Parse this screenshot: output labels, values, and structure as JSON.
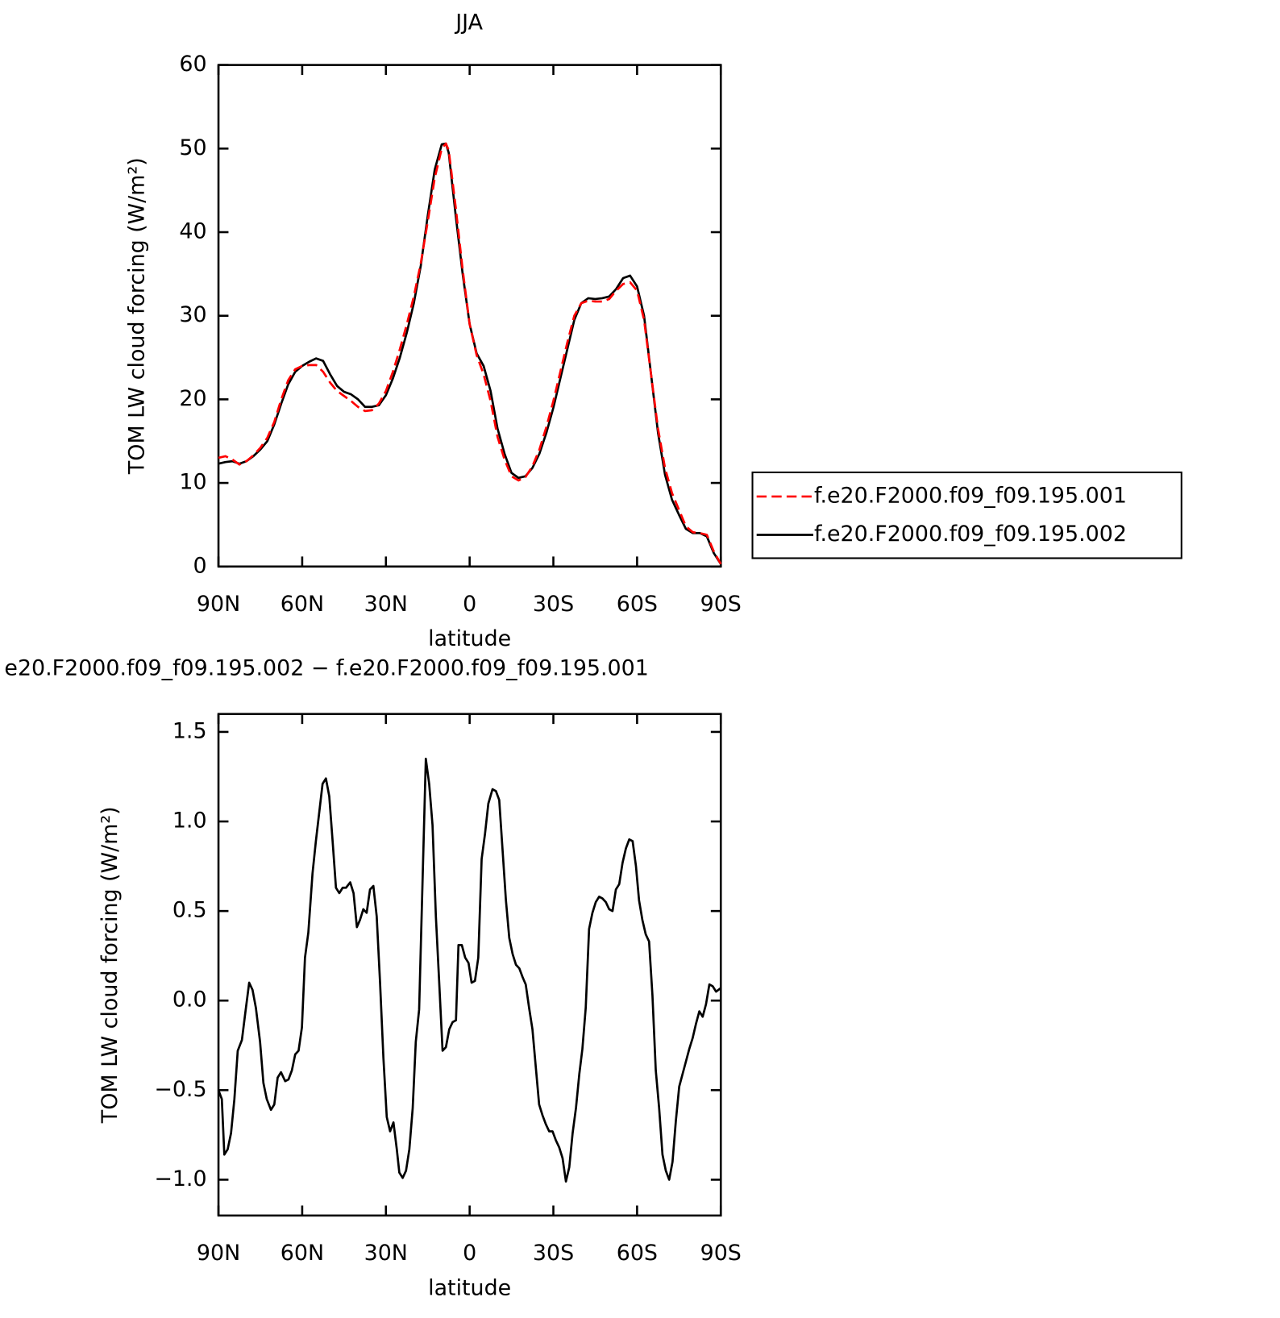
{
  "chart_data": [
    {
      "type": "line",
      "title": "JJA",
      "xlabel": "latitude",
      "ylabel": "TOM LW cloud forcing (W/m²)",
      "x": [
        90,
        87.5,
        85,
        82.5,
        80,
        77.5,
        75,
        72.5,
        70,
        67.5,
        65,
        62.5,
        60,
        57.5,
        55,
        52.5,
        50,
        47.5,
        45,
        42.5,
        40,
        37.5,
        35,
        32.5,
        30,
        27.5,
        25,
        22.5,
        20,
        17.5,
        15,
        12.5,
        10,
        8.5,
        7.5,
        5,
        2.5,
        0,
        -2.5,
        -5,
        -7.5,
        -10,
        -12.5,
        -15,
        -17.5,
        -20,
        -22.5,
        -25,
        -27.5,
        -30,
        -32.5,
        -35,
        -37.5,
        -40,
        -42.5,
        -45,
        -47.5,
        -50,
        -52.5,
        -55,
        -57.5,
        -60,
        -62.5,
        -65,
        -67.5,
        -70,
        -72.5,
        -75,
        -77.5,
        -80,
        -82.5,
        -85,
        -87.5,
        -90
      ],
      "series": [
        {
          "name": "f.e20.F2000.f09_f09.195.001",
          "color": "#ff0000",
          "line_style": "dashed",
          "values": [
            13,
            13.2,
            12.8,
            12.2,
            12.6,
            13.3,
            14.2,
            15.4,
            17.3,
            20,
            22.3,
            23.6,
            24,
            24.1,
            24.1,
            23.3,
            22,
            21,
            20.4,
            19.8,
            19.1,
            18.6,
            18.7,
            19.5,
            21,
            23.3,
            26,
            29,
            32.3,
            36.3,
            41.3,
            46.5,
            50,
            50.6,
            49.8,
            43,
            35.5,
            29,
            25.3,
            23,
            19.8,
            15.5,
            12.8,
            10.8,
            10.3,
            10.7,
            12,
            14,
            16.7,
            19.8,
            23.3,
            26.8,
            30,
            31.5,
            31.8,
            31.7,
            31.7,
            32,
            33,
            33.8,
            34,
            33,
            29.5,
            23,
            16.5,
            11.8,
            8.8,
            6.8,
            4.8,
            4.1,
            4,
            3.8,
            1.8,
            0.3
          ]
        },
        {
          "name": "f.e20.F2000.f09_f09.195.002",
          "color": "#000000",
          "line_style": "solid",
          "values": [
            12.3,
            12.5,
            12.6,
            12.3,
            12.6,
            13.2,
            14,
            15,
            17,
            19.5,
            21.8,
            23.3,
            24,
            24.5,
            24.9,
            24.6,
            23,
            21.6,
            20.9,
            20.6,
            20,
            19.1,
            19.1,
            19.3,
            20.5,
            22.5,
            25,
            28,
            31.5,
            36,
            42,
            47.5,
            50.5,
            50.6,
            49.5,
            42,
            35,
            29,
            25.5,
            24,
            21,
            16.5,
            13.5,
            11.2,
            10.6,
            10.8,
            11.8,
            13.5,
            16,
            19,
            22.5,
            26,
            29.5,
            31.5,
            32.1,
            32,
            32.1,
            32.3,
            33.2,
            34.5,
            34.8,
            33.5,
            30,
            23,
            16,
            11,
            8,
            6.2,
            4.5,
            4,
            4,
            3.6,
            1.6,
            0.3
          ]
        }
      ],
      "xlim": [
        90,
        -90
      ],
      "xticks": [
        {
          "value": 90,
          "label": "90N"
        },
        {
          "value": 60,
          "label": "60N"
        },
        {
          "value": 30,
          "label": "30N"
        },
        0,
        {
          "value": -30,
          "label": "30S"
        },
        {
          "value": -60,
          "label": "60S"
        },
        {
          "value": -90,
          "label": "90S"
        }
      ],
      "ylim": [
        0,
        60
      ],
      "yticks": [
        0,
        10,
        20,
        30,
        40,
        50,
        60
      ],
      "legend": "right"
    },
    {
      "type": "line",
      "title": "e20.F2000.f09_f09.195.002 − f.e20.F2000.f09_f09.195.001",
      "xlabel": "latitude",
      "ylabel": "TOM LW cloud forcing (W/m²)",
      "x": [
        90,
        88.8,
        87.9,
        86.7,
        85.5,
        84.3,
        83.1,
        81.6,
        80.4,
        79,
        77.8,
        76.6,
        75.1,
        73.9,
        72.7,
        71.2,
        70,
        68.8,
        67.6,
        66.1,
        64.9,
        63.7,
        62.5,
        61.3,
        60.1,
        59,
        57.8,
        56.3,
        55.1,
        53.9,
        52.7,
        51.5,
        50.3,
        49.1,
        47.9,
        46.7,
        45.5,
        44.3,
        42.8,
        41.6,
        40.4,
        39.3,
        38.1,
        36.9,
        35.7,
        34.5,
        33.3,
        32.1,
        30.9,
        29.7,
        28.5,
        27.3,
        26.1,
        25.2,
        24,
        22.8,
        21.6,
        20.4,
        19.3,
        18.1,
        16.9,
        15.7,
        14.5,
        13.3,
        12.1,
        10.9,
        9.7,
        8.5,
        7.3,
        6.1,
        4.9,
        4,
        2.8,
        1.6,
        0.4,
        -0.7,
        -1.9,
        -3.1,
        -4.3,
        -5.5,
        -6.7,
        -8.2,
        -9.4,
        -10.6,
        -11.8,
        -13,
        -14.2,
        -15.4,
        -16.6,
        -17.8,
        -19,
        -20.1,
        -21.3,
        -22.5,
        -23.7,
        -24.9,
        -26.1,
        -27.3,
        -28.5,
        -29.7,
        -30.9,
        -32.1,
        -33.3,
        -34.5,
        -35.7,
        -36.9,
        -38.1,
        -39.3,
        -40.4,
        -41.6,
        -42.8,
        -44,
        -45.2,
        -46.4,
        -47.6,
        -48.8,
        -50,
        -51.2,
        -52.4,
        -53.6,
        -54.8,
        -56,
        -57.2,
        -58.4,
        -59.6,
        -60.7,
        -61.9,
        -63.1,
        -64.3,
        -65.5,
        -66.7,
        -67.9,
        -69.1,
        -70.3,
        -71.5,
        -72.7,
        -73.9,
        -75.1,
        -76.3,
        -77.5,
        -78.7,
        -79.9,
        -81.1,
        -82.3,
        -83.5,
        -84.7,
        -85.9,
        -87.1,
        -88.3,
        -90
      ],
      "values": [
        -0.5,
        -0.55,
        -0.86,
        -0.83,
        -0.74,
        -0.55,
        -0.28,
        -0.22,
        -0.07,
        0.1,
        0.06,
        -0.04,
        -0.23,
        -0.46,
        -0.55,
        -0.61,
        -0.58,
        -0.43,
        -0.4,
        -0.45,
        -0.44,
        -0.39,
        -0.3,
        -0.28,
        -0.15,
        0.24,
        0.38,
        0.71,
        0.89,
        1.05,
        1.21,
        1.24,
        1.14,
        0.89,
        0.63,
        0.6,
        0.63,
        0.63,
        0.66,
        0.6,
        0.41,
        0.45,
        0.51,
        0.49,
        0.62,
        0.64,
        0.47,
        0.1,
        -0.32,
        -0.65,
        -0.73,
        -0.68,
        -0.83,
        -0.96,
        -0.99,
        -0.95,
        -0.83,
        -0.6,
        -0.23,
        -0.05,
        0.65,
        1.35,
        1.21,
        0.98,
        0.47,
        0.1,
        -0.28,
        -0.26,
        -0.16,
        -0.12,
        -0.11,
        0.31,
        0.31,
        0.24,
        0.21,
        0.1,
        0.11,
        0.24,
        0.79,
        0.93,
        1.1,
        1.18,
        1.17,
        1.12,
        0.84,
        0.56,
        0.35,
        0.26,
        0.2,
        0.18,
        0.13,
        0.09,
        -0.04,
        -0.16,
        -0.37,
        -0.58,
        -0.64,
        -0.69,
        -0.73,
        -0.73,
        -0.78,
        -0.82,
        -0.88,
        -1.01,
        -0.93,
        -0.74,
        -0.6,
        -0.41,
        -0.27,
        -0.04,
        0.4,
        0.49,
        0.55,
        0.58,
        0.57,
        0.55,
        0.51,
        0.5,
        0.62,
        0.65,
        0.77,
        0.85,
        0.9,
        0.89,
        0.75,
        0.56,
        0.45,
        0.37,
        0.33,
        0.03,
        -0.39,
        -0.6,
        -0.86,
        -0.95,
        -1,
        -0.9,
        -0.67,
        -0.48,
        -0.41,
        -0.34,
        -0.27,
        -0.21,
        -0.13,
        -0.06,
        -0.09,
        -0.02,
        0.09,
        0.08,
        0.05,
        0.07
      ],
      "color": "#000000",
      "xlim": [
        90,
        -90
      ],
      "xticks": [
        {
          "value": 90,
          "label": "90N"
        },
        {
          "value": 60,
          "label": "60N"
        },
        {
          "value": 30,
          "label": "30N"
        },
        0,
        {
          "value": -30,
          "label": "30S"
        },
        {
          "value": -60,
          "label": "60S"
        },
        {
          "value": -90,
          "label": "90S"
        }
      ],
      "ylim": [
        -1.2,
        1.6
      ],
      "yticks": [
        {
          "value": -1,
          "label": "−1.0"
        },
        {
          "value": -0.5,
          "label": "−0.5"
        },
        {
          "value": 0,
          "label": "0.0"
        },
        {
          "value": 0.5,
          "label": "0.5"
        },
        {
          "value": 1,
          "label": "1.0"
        },
        {
          "value": 1.5,
          "label": "1.5"
        }
      ]
    }
  ]
}
